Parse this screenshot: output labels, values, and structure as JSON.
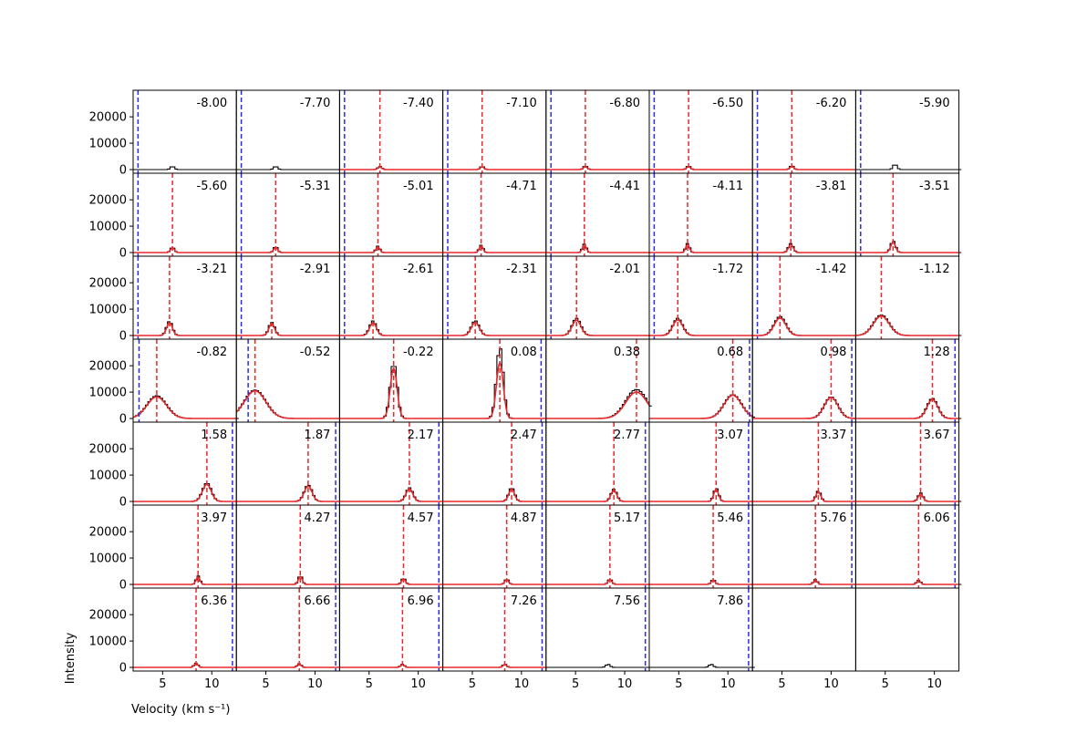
{
  "chart_data": {
    "type": "line",
    "grid": "7x8 small-multiples (54 panels)",
    "xlabel": "Velocity (km s⁻¹)",
    "ylabel": "Intensity",
    "xlim": [
      2,
      12.5
    ],
    "ylim": [
      0,
      28000
    ],
    "xticks": [
      5,
      10
    ],
    "yticks": [
      0,
      10000,
      20000
    ],
    "grid_lines": false,
    "colors": {
      "spectrum": "#000000",
      "fit": "#e8282b",
      "center_line": "#e8282b",
      "edge_line": "#2b2bea"
    },
    "panels": [
      {
        "offset": "-8.00",
        "blue": 2.5,
        "red": null,
        "peak": 1200,
        "center": 6.0,
        "fit": null
      },
      {
        "offset": "-7.70",
        "blue": 2.5,
        "red": null,
        "peak": 1200,
        "center": 6.0,
        "fit": null
      },
      {
        "offset": "-7.40",
        "blue": 2.5,
        "red": 6.1,
        "peak": 1200,
        "center": 6.1,
        "fit": {
          "amp": 1000,
          "mu": 6.1,
          "sigma": 0.2
        }
      },
      {
        "offset": "-7.10",
        "blue": 2.5,
        "red": 6.0,
        "peak": 1200,
        "center": 6.0,
        "fit": {
          "amp": 1000,
          "mu": 6.0,
          "sigma": 0.2
        }
      },
      {
        "offset": "-6.80",
        "blue": 2.5,
        "red": 6.0,
        "peak": 1400,
        "center": 6.0,
        "fit": {
          "amp": 1100,
          "mu": 6.0,
          "sigma": 0.2
        }
      },
      {
        "offset": "-6.50",
        "blue": 2.5,
        "red": 6.0,
        "peak": 1400,
        "center": 6.0,
        "fit": {
          "amp": 1100,
          "mu": 6.0,
          "sigma": 0.2
        }
      },
      {
        "offset": "-6.20",
        "blue": 2.5,
        "red": 6.0,
        "peak": 1500,
        "center": 6.0,
        "fit": {
          "amp": 1200,
          "mu": 6.0,
          "sigma": 0.2
        }
      },
      {
        "offset": "-5.90",
        "blue": 2.5,
        "red": null,
        "peak": 2000,
        "center": 6.0,
        "fit": null
      },
      {
        "offset": "-5.60",
        "blue": 2.5,
        "red": 6.0,
        "peak": 2000,
        "center": 6.0,
        "fit": {
          "amp": 1800,
          "mu": 6.0,
          "sigma": 0.2
        }
      },
      {
        "offset": "-5.31",
        "blue": 2.5,
        "red": 6.0,
        "peak": 2300,
        "center": 6.0,
        "fit": {
          "amp": 2000,
          "mu": 6.0,
          "sigma": 0.2
        }
      },
      {
        "offset": "-5.01",
        "blue": 2.5,
        "red": 5.9,
        "peak": 2400,
        "center": 5.9,
        "fit": {
          "amp": 2100,
          "mu": 5.9,
          "sigma": 0.2
        }
      },
      {
        "offset": "-4.71",
        "blue": 2.5,
        "red": 5.9,
        "peak": 2800,
        "center": 5.9,
        "fit": {
          "amp": 2500,
          "mu": 5.9,
          "sigma": 0.2
        }
      },
      {
        "offset": "-4.41",
        "blue": 2.5,
        "red": 5.9,
        "peak": 3200,
        "center": 5.9,
        "fit": {
          "amp": 2900,
          "mu": 5.9,
          "sigma": 0.2
        }
      },
      {
        "offset": "-4.11",
        "blue": 2.5,
        "red": 5.9,
        "peak": 3400,
        "center": 5.9,
        "fit": {
          "amp": 3000,
          "mu": 5.9,
          "sigma": 0.2
        }
      },
      {
        "offset": "-3.81",
        "blue": 2.5,
        "red": 5.9,
        "peak": 3400,
        "center": 5.9,
        "fit": {
          "amp": 3000,
          "mu": 5.9,
          "sigma": 0.25
        }
      },
      {
        "offset": "-3.51",
        "blue": 2.5,
        "red": 5.8,
        "peak": 4400,
        "center": 5.8,
        "fit": {
          "amp": 3800,
          "mu": 5.8,
          "sigma": 0.25
        }
      },
      {
        "offset": "-3.21",
        "blue": 2.5,
        "red": 5.7,
        "peak": 5400,
        "center": 5.7,
        "fit": {
          "amp": 4800,
          "mu": 5.7,
          "sigma": 0.3
        }
      },
      {
        "offset": "-2.91",
        "blue": 2.5,
        "red": 5.6,
        "peak": 5000,
        "center": 5.6,
        "fit": {
          "amp": 4400,
          "mu": 5.6,
          "sigma": 0.3
        }
      },
      {
        "offset": "-2.61",
        "blue": 2.5,
        "red": 5.4,
        "peak": 5500,
        "center": 5.4,
        "fit": {
          "amp": 4800,
          "mu": 5.4,
          "sigma": 0.35
        }
      },
      {
        "offset": "-2.31",
        "blue": 2.5,
        "red": 5.3,
        "peak": 5600,
        "center": 5.3,
        "fit": {
          "amp": 5000,
          "mu": 5.3,
          "sigma": 0.4
        }
      },
      {
        "offset": "-2.01",
        "blue": 2.5,
        "red": 5.1,
        "peak": 6500,
        "center": 5.1,
        "fit": {
          "amp": 5800,
          "mu": 5.1,
          "sigma": 0.45
        }
      },
      {
        "offset": "-1.72",
        "blue": 2.5,
        "red": 4.9,
        "peak": 6500,
        "center": 4.9,
        "fit": {
          "amp": 5900,
          "mu": 4.9,
          "sigma": 0.5
        }
      },
      {
        "offset": "-1.42",
        "blue": 2.5,
        "red": 4.8,
        "peak": 7200,
        "center": 4.8,
        "fit": {
          "amp": 6600,
          "mu": 4.8,
          "sigma": 0.6
        }
      },
      {
        "offset": "-1.12",
        "blue": null,
        "red": 4.6,
        "peak": 7800,
        "center": 4.6,
        "fit": {
          "amp": 7400,
          "mu": 4.6,
          "sigma": 0.8
        }
      },
      {
        "offset": "-0.82",
        "blue": 2.6,
        "red": 4.4,
        "peak": 8600,
        "center": 4.4,
        "fit": {
          "amp": 8200,
          "mu": 4.4,
          "sigma": 1.0
        }
      },
      {
        "offset": "-0.52",
        "blue": 3.2,
        "red": 3.9,
        "peak": 10800,
        "center": 3.9,
        "fit": {
          "amp": 10500,
          "mu": 3.9,
          "sigma": 1.1
        }
      },
      {
        "offset": "-0.22",
        "blue": null,
        "red": 7.5,
        "peak": 21000,
        "center": 7.5,
        "fit": {
          "amp": 19000,
          "mu": 7.5,
          "sigma": 0.35
        }
      },
      {
        "offset": "0.08",
        "blue": 12.0,
        "red": 7.8,
        "peak": 27000,
        "center": 7.8,
        "fit": {
          "amp": 21000,
          "mu": 7.8,
          "sigma": 0.35
        }
      },
      {
        "offset": "0.38",
        "blue": null,
        "red": 11.2,
        "peak": 11000,
        "center": 11.2,
        "fit": {
          "amp": 10000,
          "mu": 11.2,
          "sigma": 1.1
        }
      },
      {
        "offset": "0.68",
        "blue": 12.2,
        "red": 10.5,
        "peak": 9000,
        "center": 10.5,
        "fit": {
          "amp": 8800,
          "mu": 10.5,
          "sigma": 0.9
        }
      },
      {
        "offset": "0.98",
        "blue": 12.1,
        "red": 10.0,
        "peak": 8200,
        "center": 10.0,
        "fit": {
          "amp": 8000,
          "mu": 10.0,
          "sigma": 0.7
        }
      },
      {
        "offset": "1.28",
        "blue": 12.1,
        "red": 9.8,
        "peak": 7600,
        "center": 9.8,
        "fit": {
          "amp": 7200,
          "mu": 9.8,
          "sigma": 0.55
        }
      },
      {
        "offset": "1.58",
        "blue": 12.1,
        "red": 9.5,
        "peak": 7000,
        "center": 9.5,
        "fit": {
          "amp": 6400,
          "mu": 9.5,
          "sigma": 0.45
        }
      },
      {
        "offset": "1.87",
        "blue": 12.1,
        "red": 9.3,
        "peak": 6200,
        "center": 9.3,
        "fit": {
          "amp": 5800,
          "mu": 9.3,
          "sigma": 0.4
        }
      },
      {
        "offset": "2.17",
        "blue": 12.1,
        "red": 9.1,
        "peak": 5200,
        "center": 9.1,
        "fit": {
          "amp": 4800,
          "mu": 9.1,
          "sigma": 0.35
        }
      },
      {
        "offset": "2.47",
        "blue": 12.1,
        "red": 9.0,
        "peak": 5200,
        "center": 9.0,
        "fit": {
          "amp": 4600,
          "mu": 9.0,
          "sigma": 0.3
        }
      },
      {
        "offset": "2.77",
        "blue": 12.1,
        "red": 8.9,
        "peak": 4600,
        "center": 8.9,
        "fit": {
          "amp": 4200,
          "mu": 8.9,
          "sigma": 0.3
        }
      },
      {
        "offset": "3.07",
        "blue": 12.1,
        "red": 8.8,
        "peak": 5000,
        "center": 8.8,
        "fit": {
          "amp": 4500,
          "mu": 8.8,
          "sigma": 0.25
        }
      },
      {
        "offset": "3.37",
        "blue": 12.1,
        "red": 8.7,
        "peak": 4000,
        "center": 8.7,
        "fit": {
          "amp": 3600,
          "mu": 8.7,
          "sigma": 0.25
        }
      },
      {
        "offset": "3.67",
        "blue": 12.1,
        "red": 8.6,
        "peak": 3200,
        "center": 8.6,
        "fit": {
          "amp": 2800,
          "mu": 8.6,
          "sigma": 0.25
        }
      },
      {
        "offset": "3.97",
        "blue": 12.1,
        "red": 8.6,
        "peak": 3200,
        "center": 8.6,
        "fit": {
          "amp": 2800,
          "mu": 8.6,
          "sigma": 0.2
        }
      },
      {
        "offset": "4.27",
        "blue": 12.1,
        "red": 8.5,
        "peak": 3400,
        "center": 8.5,
        "fit": {
          "amp": 3000,
          "mu": 8.5,
          "sigma": 0.2
        }
      },
      {
        "offset": "4.57",
        "blue": 12.1,
        "red": 8.5,
        "peak": 2400,
        "center": 8.5,
        "fit": {
          "amp": 2100,
          "mu": 8.5,
          "sigma": 0.2
        }
      },
      {
        "offset": "4.87",
        "blue": 12.1,
        "red": 8.5,
        "peak": 2000,
        "center": 8.5,
        "fit": {
          "amp": 1800,
          "mu": 8.5,
          "sigma": 0.2
        }
      },
      {
        "offset": "5.17",
        "blue": 12.1,
        "red": 8.5,
        "peak": 2000,
        "center": 8.5,
        "fit": {
          "amp": 1800,
          "mu": 8.5,
          "sigma": 0.2
        }
      },
      {
        "offset": "5.46",
        "blue": 12.1,
        "red": 8.5,
        "peak": 1800,
        "center": 8.5,
        "fit": {
          "amp": 1600,
          "mu": 8.5,
          "sigma": 0.2
        }
      },
      {
        "offset": "5.76",
        "blue": 12.1,
        "red": 8.4,
        "peak": 1800,
        "center": 8.4,
        "fit": {
          "amp": 1500,
          "mu": 8.4,
          "sigma": 0.2
        }
      },
      {
        "offset": "6.06",
        "blue": 12.1,
        "red": 8.4,
        "peak": 1600,
        "center": 8.4,
        "fit": {
          "amp": 1400,
          "mu": 8.4,
          "sigma": 0.2
        }
      },
      {
        "offset": "6.36",
        "blue": 12.1,
        "red": 8.4,
        "peak": 1600,
        "center": 8.4,
        "fit": {
          "amp": 1400,
          "mu": 8.4,
          "sigma": 0.2
        }
      },
      {
        "offset": "6.66",
        "blue": 12.1,
        "red": 8.4,
        "peak": 1400,
        "center": 8.4,
        "fit": {
          "amp": 1200,
          "mu": 8.4,
          "sigma": 0.2
        }
      },
      {
        "offset": "6.96",
        "blue": 12.1,
        "red": 8.4,
        "peak": 1200,
        "center": 8.4,
        "fit": {
          "amp": 1000,
          "mu": 8.4,
          "sigma": 0.2
        }
      },
      {
        "offset": "7.26",
        "blue": 12.1,
        "red": 8.3,
        "peak": 1200,
        "center": 8.3,
        "fit": {
          "amp": 1000,
          "mu": 8.3,
          "sigma": 0.2
        }
      },
      {
        "offset": "7.56",
        "blue": 12.1,
        "red": null,
        "peak": 1200,
        "center": 8.3,
        "fit": null
      },
      {
        "offset": "7.86",
        "blue": 12.1,
        "red": null,
        "peak": 1200,
        "center": 8.3,
        "fit": null
      },
      {
        "offset": "",
        "blue": null,
        "red": null,
        "peak": 0,
        "center": null,
        "fit": null
      },
      {
        "offset": "",
        "blue": null,
        "red": null,
        "peak": 0,
        "center": null,
        "fit": null
      }
    ]
  }
}
